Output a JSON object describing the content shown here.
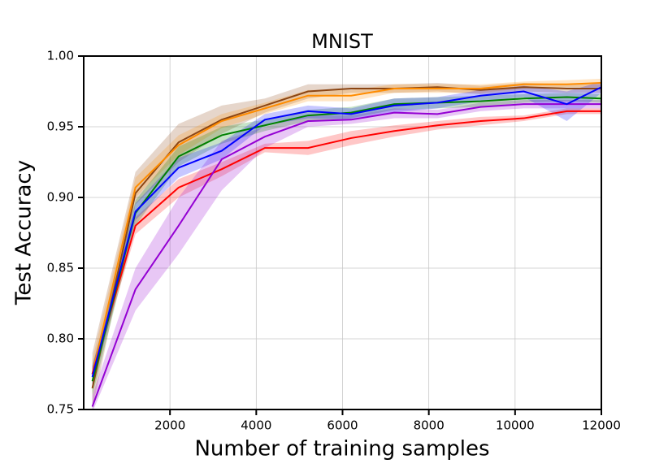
{
  "chart_data": {
    "type": "line",
    "title": "MNIST",
    "x_label": "Number of training samples",
    "y_label": "Test Accuracy",
    "x": [
      200,
      1200,
      2200,
      3200,
      4200,
      5200,
      6200,
      7200,
      8200,
      9200,
      10200,
      11200,
      12000
    ],
    "xlim": [
      0,
      12000
    ],
    "ylim": [
      0.75,
      1.0
    ],
    "xticks": [
      2000,
      4000,
      6000,
      8000,
      10000,
      12000
    ],
    "yticks": [
      0.75,
      {
        "value": 0.8,
        "label": "0.80"
      },
      0.85,
      {
        "value": 0.9,
        "label": "0.90"
      },
      0.95,
      {
        "value": 1.0,
        "label": "1.00"
      }
    ],
    "grid": true,
    "series": [
      {
        "color": "#8b4513",
        "values": [
          0.765,
          0.903,
          0.939,
          0.955,
          0.965,
          0.975,
          0.977,
          0.977,
          0.978,
          0.976,
          0.978,
          0.977,
          0.977
        ],
        "lower": [
          0.75,
          0.895,
          0.925,
          0.945,
          0.96,
          0.97,
          0.974,
          0.974,
          0.975,
          0.973,
          0.975,
          0.974,
          0.974
        ],
        "upper": [
          0.79,
          0.918,
          0.952,
          0.965,
          0.97,
          0.98,
          0.98,
          0.98,
          0.981,
          0.979,
          0.981,
          0.98,
          0.98
        ]
      },
      {
        "color": "#ff8c00",
        "values": [
          0.775,
          0.907,
          0.937,
          0.954,
          0.963,
          0.972,
          0.972,
          0.977,
          0.977,
          0.977,
          0.98,
          0.98,
          0.981
        ],
        "lower": [
          0.765,
          0.9,
          0.93,
          0.949,
          0.959,
          0.968,
          0.968,
          0.974,
          0.974,
          0.974,
          0.977,
          0.978,
          0.978
        ],
        "upper": [
          0.785,
          0.914,
          0.944,
          0.959,
          0.967,
          0.976,
          0.976,
          0.98,
          0.98,
          0.98,
          0.982,
          0.983,
          0.984
        ]
      },
      {
        "color": "#ff0000",
        "values": [
          0.775,
          0.88,
          0.907,
          0.92,
          0.935,
          0.935,
          0.942,
          0.947,
          0.951,
          0.954,
          0.956,
          0.961,
          0.961
        ],
        "lower": [
          0.77,
          0.874,
          0.9,
          0.915,
          0.932,
          0.93,
          0.937,
          0.943,
          0.948,
          0.951,
          0.954,
          0.959,
          0.959
        ],
        "upper": [
          0.78,
          0.886,
          0.913,
          0.925,
          0.938,
          0.94,
          0.947,
          0.951,
          0.954,
          0.957,
          0.958,
          0.963,
          0.963
        ]
      },
      {
        "color": "#9400d3",
        "values": [
          0.752,
          0.835,
          0.88,
          0.927,
          0.943,
          0.954,
          0.955,
          0.96,
          0.959,
          0.964,
          0.966,
          0.966,
          0.966
        ],
        "lower": [
          0.748,
          0.82,
          0.86,
          0.905,
          0.935,
          0.95,
          0.952,
          0.956,
          0.956,
          0.961,
          0.963,
          0.963,
          0.963
        ],
        "upper": [
          0.76,
          0.85,
          0.9,
          0.94,
          0.95,
          0.958,
          0.958,
          0.963,
          0.962,
          0.967,
          0.969,
          0.969,
          0.969
        ]
      },
      {
        "color": "#008000",
        "values": [
          0.77,
          0.889,
          0.929,
          0.944,
          0.951,
          0.958,
          0.96,
          0.966,
          0.967,
          0.968,
          0.97,
          0.971,
          0.97
        ],
        "lower": [
          0.76,
          0.88,
          0.922,
          0.938,
          0.947,
          0.954,
          0.956,
          0.962,
          0.963,
          0.964,
          0.967,
          0.968,
          0.967
        ],
        "upper": [
          0.78,
          0.898,
          0.936,
          0.95,
          0.955,
          0.962,
          0.964,
          0.97,
          0.971,
          0.972,
          0.973,
          0.974,
          0.973
        ]
      },
      {
        "color": "#0000ff",
        "values": [
          0.773,
          0.89,
          0.921,
          0.933,
          0.955,
          0.961,
          0.959,
          0.965,
          0.967,
          0.972,
          0.975,
          0.966,
          0.978
        ],
        "lower": [
          0.765,
          0.884,
          0.914,
          0.927,
          0.951,
          0.956,
          0.955,
          0.96,
          0.963,
          0.968,
          0.971,
          0.954,
          0.974
        ],
        "upper": [
          0.781,
          0.896,
          0.928,
          0.939,
          0.959,
          0.965,
          0.963,
          0.97,
          0.971,
          0.976,
          0.979,
          0.975,
          0.982
        ]
      }
    ]
  }
}
